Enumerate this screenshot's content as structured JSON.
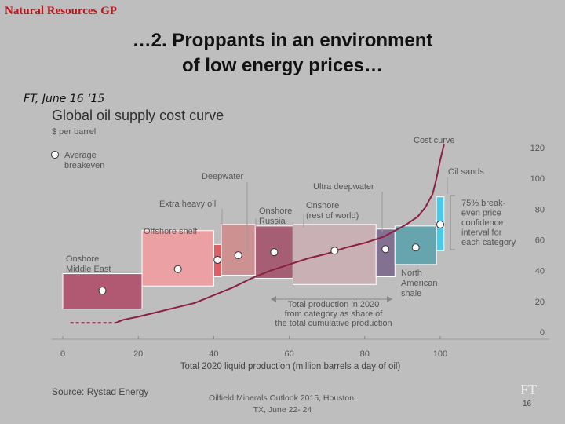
{
  "slide": {
    "brand": "Natural Resources GP",
    "title_line1": "…2. Proppants in an environment",
    "title_line2": "of low energy prices…",
    "ft_date": "FT, June 16 ‘15",
    "source": "Source: Rystad Energy",
    "footer_line1": "Oilfield Minerals Outlook 2015, Houston,",
    "footer_line2": "TX, June 22- 24",
    "ft_logo": "FT",
    "page_number": "16"
  },
  "chart_data": {
    "type": "bar",
    "title": "Global oil supply cost curve",
    "ylabel": "$ per barrel",
    "xlabel": "Total 2020 liquid production (million barrels a day of oil)",
    "xlim": [
      0,
      100
    ],
    "ylim": [
      0,
      120
    ],
    "xticks": [
      0,
      20,
      40,
      60,
      80,
      100
    ],
    "yticks": [
      0,
      20,
      40,
      60,
      80,
      100,
      120
    ],
    "legend": {
      "average_breakeven": "Average breakeven",
      "cost_curve": "Cost curve",
      "confidence_box_note": "75% break-even price confidence interval for each category",
      "width_note": "Total production in 2020 from category as share of the total cumulative production"
    },
    "categories": [
      {
        "name": "Onshore Middle East",
        "x0": 0,
        "x1": 21,
        "y_low": 15,
        "y_high": 38,
        "breakeven": 27,
        "color": "#b0506c"
      },
      {
        "name": "Offshore shelf",
        "x0": 21,
        "x1": 40,
        "y_low": 30,
        "y_high": 66,
        "breakeven": 41,
        "color": "#ef9da1"
      },
      {
        "name": "",
        "x0": 40,
        "x1": 42,
        "y_low": 36,
        "y_high": 57,
        "breakeven": 47,
        "color": "#de5660"
      },
      {
        "name": "Extra heavy oil",
        "x0": 42,
        "x1": 51,
        "y_low": 37,
        "y_high": 70,
        "breakeven": 50,
        "color": "#cd8d8c"
      },
      {
        "name": "Onshore Russia",
        "x0": 51,
        "x1": 61,
        "y_low": 35,
        "y_high": 69,
        "breakeven": 52,
        "color": "#a3566c"
      },
      {
        "name": "Onshore (rest of world)",
        "x0": 61,
        "x1": 83,
        "y_low": 31,
        "y_high": 70,
        "breakeven": 53,
        "color": "#c9afb3"
      },
      {
        "name": "Ultra deepwater",
        "x0": 83,
        "x1": 88,
        "y_low": 36,
        "y_high": 67,
        "breakeven": 54,
        "color": "#7d6a8d"
      },
      {
        "name": "North American shale",
        "x0": 88,
        "x1": 99,
        "y_low": 44,
        "y_high": 69,
        "breakeven": 55,
        "color": "#5ea2ad"
      },
      {
        "name": "Oil sands",
        "x0": 99,
        "x1": 101,
        "y_low": 53,
        "y_high": 88,
        "breakeven": 70,
        "color": "#3fcbea"
      }
    ],
    "extra_labels": {
      "deepwater": "Deepwater"
    },
    "cost_curve": {
      "x": [
        2,
        12,
        14,
        16,
        20,
        25,
        30,
        35,
        40,
        45,
        50,
        55,
        60,
        65,
        70,
        75,
        80,
        85,
        88,
        91,
        94,
        96,
        98,
        99,
        100,
        101
      ],
      "y": [
        6,
        6,
        6,
        8,
        10,
        13,
        16,
        19,
        24,
        29,
        35,
        40,
        44,
        48,
        51,
        55,
        58,
        62,
        66,
        70,
        75,
        81,
        90,
        100,
        112,
        122
      ]
    }
  }
}
